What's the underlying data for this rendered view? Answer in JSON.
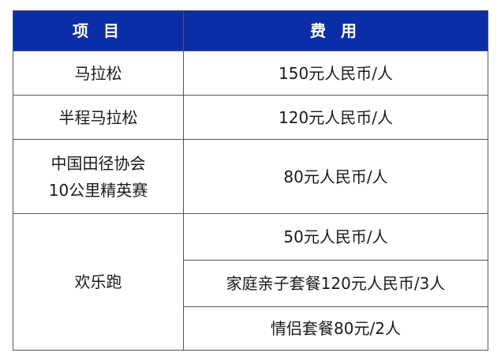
{
  "header_color": "#0b2ea8",
  "table": {
    "headers": [
      "项 目",
      "费 用"
    ],
    "rows": [
      {
        "item": "马拉松",
        "fees": [
          "150元人民币/人"
        ]
      },
      {
        "item": "半程马拉松",
        "fees": [
          "120元人民币/人"
        ]
      },
      {
        "item_lines": [
          "中国田径协会",
          "10公里精英赛"
        ],
        "fees": [
          "80元人民币/人"
        ]
      },
      {
        "item": "欢乐跑",
        "fees": [
          "50元人民币/人",
          "家庭亲子套餐120元人民币/3人",
          "情侣套餐80元/2人"
        ]
      }
    ]
  }
}
